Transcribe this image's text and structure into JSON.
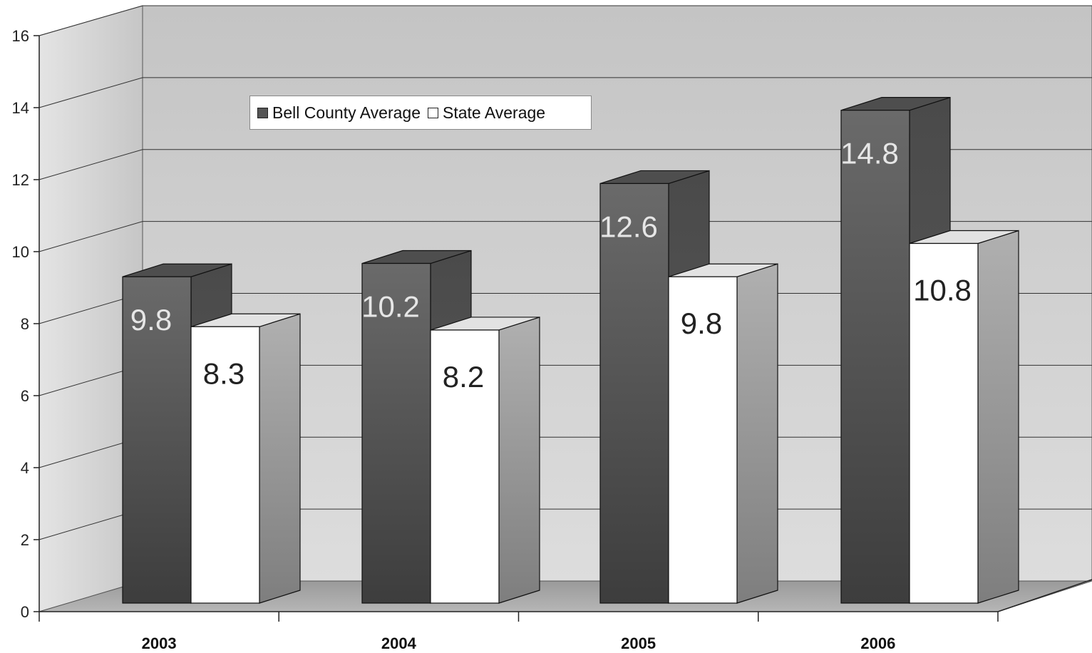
{
  "chart_data": {
    "type": "bar",
    "categories": [
      "2003",
      "2004",
      "2005",
      "2006"
    ],
    "series": [
      {
        "name": "Bell County Average",
        "values": [
          9.8,
          10.2,
          12.6,
          14.8
        ],
        "color": "#555555"
      },
      {
        "name": "State Average",
        "values": [
          8.3,
          8.2,
          9.8,
          10.8
        ],
        "color": "#ffffff"
      }
    ],
    "data_labels": {
      "series_0": [
        "9.8",
        "10.2",
        "12.6",
        "14.8"
      ],
      "series_1": [
        "8.3",
        "8.2",
        "9.8",
        "10.8"
      ]
    },
    "y_ticks": [
      "0",
      "2",
      "4",
      "6",
      "8",
      "10",
      "12",
      "14",
      "16"
    ],
    "ylim": [
      0,
      16
    ],
    "grid": true,
    "legend_position": "top-left",
    "style": "3d-clustered-column"
  }
}
